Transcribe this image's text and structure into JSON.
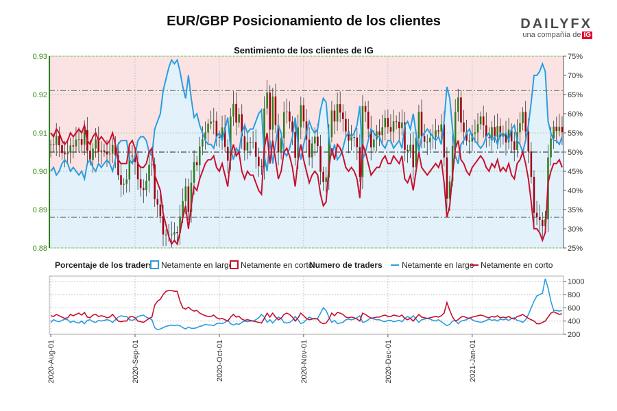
{
  "header": {
    "title": "EUR/GBP Posicionamiento de los clientes",
    "brand": "DAILYFX",
    "brand_sub": "una compañía de",
    "brand_ig": "IG"
  },
  "chart_data": [
    {
      "type": "candlestick+line",
      "title": "Sentimiento de los clientes de IG",
      "y_left": {
        "ticks": [
          0.93,
          0.92,
          0.91,
          0.9,
          0.89,
          0.88
        ],
        "range": [
          0.88,
          0.93
        ],
        "color": "#3a8a1a"
      },
      "y_right": {
        "ticks": [
          "75%",
          "70%",
          "65%",
          "60%",
          "55%",
          "50%",
          "45%",
          "40%",
          "35%",
          "30%",
          "25%"
        ],
        "range": [
          25,
          75
        ]
      },
      "grid": true,
      "reference_levels": {
        "upper": 0.921,
        "middle": 0.905,
        "lower": 0.888
      },
      "price_start": 0.907,
      "series": [
        {
          "name": "Netamente en largo",
          "color": "#2b9de0",
          "fill": "#e3f1fb",
          "values": [
            45,
            46,
            44,
            45,
            47,
            48,
            47,
            45,
            46,
            45,
            44,
            45,
            43,
            47,
            48,
            46,
            45,
            47,
            46,
            47,
            48,
            47,
            45,
            48,
            52,
            53,
            53,
            53,
            48,
            47,
            49,
            53,
            54,
            54,
            53,
            50,
            49,
            56,
            58,
            60,
            66,
            69,
            72,
            74,
            73,
            74,
            71,
            67,
            64,
            70,
            64,
            59,
            60,
            57,
            55,
            53,
            52,
            52,
            51,
            54,
            55,
            53,
            56,
            59,
            51,
            48,
            51,
            50,
            55,
            57,
            55,
            56,
            56,
            58,
            60,
            61,
            49,
            45,
            53,
            47,
            52,
            57,
            55,
            50,
            49,
            51,
            54,
            59,
            52,
            48,
            52,
            55,
            58,
            56,
            55,
            56,
            61,
            64,
            63,
            54,
            49,
            52,
            48,
            49,
            51,
            54,
            55,
            54,
            55,
            57,
            62,
            48,
            50,
            53,
            56,
            55,
            54,
            54,
            52,
            51,
            53,
            53,
            51,
            52,
            53,
            51,
            57,
            58,
            56,
            60,
            55,
            50,
            54,
            55,
            56,
            55,
            54,
            53,
            54,
            52,
            58,
            67,
            64,
            56,
            49,
            47,
            52,
            53,
            55,
            56,
            54,
            53,
            52,
            51,
            52,
            54,
            55,
            53,
            54,
            52,
            55,
            54,
            55,
            53,
            56,
            57,
            53,
            52,
            50,
            53,
            57,
            63,
            70,
            70,
            71,
            73,
            71,
            58,
            55,
            53,
            53,
            52,
            54
          ],
          "comment": "percent of traders net long"
        },
        {
          "name": "Netamente en corto",
          "color": "#c8102e",
          "values": [
            55,
            54,
            56,
            55,
            53,
            52,
            53,
            55,
            54,
            55,
            56,
            55,
            57,
            53,
            52,
            54,
            55,
            53,
            54,
            53,
            52,
            53,
            55,
            52,
            48,
            47,
            47,
            47,
            52,
            53,
            51,
            47,
            46,
            46,
            47,
            50,
            51,
            44,
            42,
            40,
            34,
            31,
            28,
            26,
            27,
            26,
            29,
            33,
            36,
            30,
            36,
            41,
            40,
            43,
            45,
            47,
            48,
            48,
            49,
            46,
            45,
            47,
            44,
            41,
            49,
            52,
            49,
            50,
            45,
            43,
            45,
            44,
            44,
            42,
            40,
            39,
            51,
            55,
            47,
            53,
            48,
            43,
            45,
            50,
            51,
            49,
            46,
            41,
            48,
            52,
            48,
            45,
            42,
            44,
            45,
            44,
            39,
            36,
            37,
            46,
            51,
            48,
            52,
            51,
            49,
            46,
            45,
            46,
            45,
            43,
            38,
            52,
            50,
            47,
            44,
            45,
            46,
            46,
            48,
            49,
            47,
            47,
            49,
            48,
            47,
            49,
            43,
            42,
            44,
            40,
            45,
            50,
            46,
            45,
            44,
            45,
            46,
            47,
            46,
            48,
            42,
            33,
            36,
            44,
            51,
            53,
            48,
            47,
            45,
            44,
            46,
            47,
            48,
            49,
            48,
            46,
            45,
            47,
            46,
            48,
            45,
            46,
            45,
            47,
            44,
            43,
            47,
            48,
            50,
            47,
            43,
            37,
            30,
            30,
            29,
            27,
            29,
            42,
            45,
            47,
            47,
            48,
            46
          ]
        }
      ]
    },
    {
      "type": "line",
      "title": "",
      "ylim": [
        200,
        1080
      ],
      "y_ticks": [
        1000,
        800,
        600,
        400,
        200
      ],
      "series": [
        {
          "name": "Netamente en largo",
          "color": "#2b9de0",
          "values": [
            380,
            420,
            400,
            390,
            410,
            430,
            420,
            380,
            400,
            380,
            370,
            400,
            360,
            410,
            420,
            390,
            380,
            410,
            400,
            410,
            420,
            410,
            380,
            420,
            460,
            480,
            470,
            470,
            420,
            410,
            430,
            470,
            480,
            490,
            460,
            440,
            420,
            300,
            270,
            280,
            300,
            320,
            330,
            340,
            330,
            340,
            330,
            300,
            280,
            310,
            290,
            290,
            300,
            320,
            330,
            350,
            340,
            340,
            330,
            360,
            370,
            360,
            380,
            410,
            360,
            340,
            360,
            350,
            380,
            400,
            390,
            400,
            400,
            420,
            450,
            500,
            460,
            380,
            420,
            370,
            420,
            460,
            440,
            380,
            370,
            380,
            410,
            470,
            420,
            360,
            380,
            420,
            460,
            440,
            430,
            440,
            520,
            600,
            560,
            460,
            380,
            410,
            360,
            370,
            380,
            420,
            430,
            420,
            430,
            450,
            480,
            380,
            390,
            420,
            450,
            430,
            420,
            420,
            400,
            390,
            410,
            410,
            390,
            400,
            410,
            390,
            440,
            470,
            440,
            480,
            430,
            380,
            420,
            430,
            440,
            430,
            410,
            400,
            420,
            390,
            360,
            330,
            350,
            400,
            410,
            360,
            400,
            410,
            420,
            450,
            420,
            400,
            390,
            380,
            390,
            410,
            430,
            410,
            420,
            400,
            430,
            420,
            430,
            410,
            440,
            450,
            410,
            400,
            380,
            420,
            500,
            600,
            700,
            780,
            800,
            820,
            1040,
            900,
            700,
            560,
            560,
            550,
            560
          ]
        },
        {
          "name": "Netamente en corto",
          "color": "#c8102e",
          "values": [
            480,
            470,
            500,
            480,
            460,
            440,
            450,
            500,
            480,
            500,
            520,
            490,
            530,
            460,
            450,
            490,
            500,
            470,
            480,
            470,
            450,
            460,
            500,
            450,
            400,
            390,
            400,
            400,
            460,
            470,
            450,
            400,
            390,
            380,
            410,
            440,
            460,
            640,
            700,
            730,
            800,
            850,
            860,
            860,
            850,
            850,
            700,
            600,
            580,
            610,
            570,
            550,
            560,
            520,
            500,
            480,
            470,
            470,
            490,
            450,
            430,
            440,
            420,
            400,
            460,
            500,
            460,
            470,
            430,
            410,
            420,
            410,
            400,
            390,
            380,
            370,
            440,
            520,
            460,
            520,
            460,
            420,
            440,
            500,
            520,
            500,
            460,
            400,
            450,
            520,
            480,
            440,
            420,
            430,
            440,
            430,
            380,
            360,
            370,
            430,
            520,
            480,
            530,
            520,
            500,
            460,
            450,
            460,
            450,
            430,
            400,
            520,
            500,
            470,
            440,
            450,
            460,
            460,
            480,
            490,
            470,
            470,
            490,
            480,
            470,
            490,
            440,
            420,
            440,
            400,
            450,
            500,
            460,
            450,
            440,
            450,
            460,
            470,
            460,
            480,
            520,
            680,
            560,
            460,
            400,
            420,
            460,
            470,
            450,
            440,
            460,
            470,
            480,
            490,
            480,
            460,
            450,
            470,
            460,
            480,
            450,
            460,
            450,
            470,
            440,
            430,
            470,
            480,
            500,
            470,
            440,
            420,
            400,
            360,
            360,
            380,
            400,
            460,
            520,
            540,
            520,
            500,
            510
          ]
        }
      ]
    }
  ],
  "x_axis": {
    "labels": [
      "2020-Aug-01",
      "2020-Sep-01",
      "2020-Oct-01",
      "2020-Nov-01",
      "2020-Dec-01",
      "2021-Jan-01"
    ],
    "positions": [
      0,
      30,
      60,
      90,
      120,
      150
    ]
  },
  "legend": {
    "left_title": "Porcentaje de los traders",
    "left_long": "Netamente en largo",
    "left_short": "Netamente en corto",
    "right_title": "Numero de traders",
    "right_long": "Netamente en largo",
    "right_short": "Netamente en corto"
  },
  "colors": {
    "long": "#2b9de0",
    "short": "#c8102e",
    "up_candle": "#2e7d1e",
    "down_candle": "#a0000f"
  }
}
